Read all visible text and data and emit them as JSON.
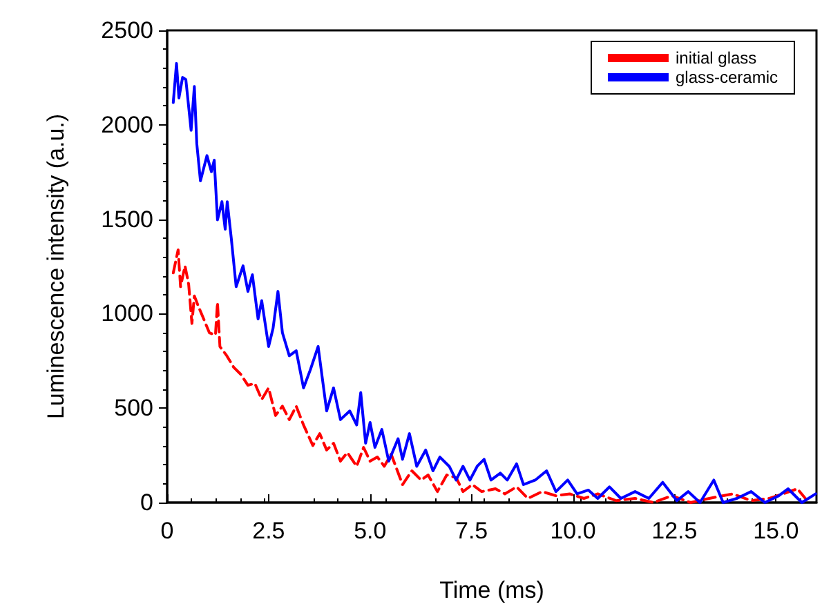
{
  "chart_data": {
    "type": "line",
    "xlabel": "Time (ms)",
    "ylabel": "Luminescence intensity (a.u.)",
    "xlim": [
      0,
      16
    ],
    "ylim": [
      0,
      2500
    ],
    "xticks": [
      0,
      2.5,
      {
        "value": 5,
        "label": "5.0"
      },
      7.5,
      {
        "value": 10,
        "label": "10.0"
      },
      12.5,
      {
        "value": 15,
        "label": "15.0"
      }
    ],
    "yticks": [
      0,
      500,
      1000,
      1500,
      2000,
      2500
    ],
    "grid": false,
    "legend": "top right",
    "marker": "none",
    "series": [
      {
        "name": "initial glass",
        "color": "#ff0000",
        "line_style": "dashed",
        "x": [
          0.15,
          0.27,
          0.33,
          0.44,
          0.53,
          0.61,
          0.67,
          0.78,
          0.9,
          1.04,
          1.19,
          1.24,
          1.3,
          1.47,
          1.64,
          1.81,
          1.99,
          2.16,
          2.33,
          2.5,
          2.67,
          2.84,
          3.01,
          3.18,
          3.36,
          3.59,
          3.76,
          3.93,
          4.1,
          4.27,
          4.44,
          4.67,
          4.84,
          5.0,
          5.18,
          5.35,
          5.52,
          5.8,
          6.03,
          6.26,
          6.43,
          6.66,
          6.89,
          7.12,
          7.29,
          7.52,
          7.75,
          8.09,
          8.32,
          8.61,
          8.89,
          9.24,
          9.58,
          9.92,
          10.27,
          10.61,
          11.07,
          11.53,
          11.98,
          12.44,
          12.9,
          13.36,
          13.93,
          14.39,
          14.84,
          15.18,
          15.53,
          15.81
        ],
        "values": [
          1216,
          1338,
          1143,
          1253,
          1155,
          948,
          1094,
          1033,
          972,
          899,
          887,
          1060,
          826,
          777,
          716,
          680,
          621,
          631,
          546,
          607,
          461,
          510,
          439,
          510,
          411,
          302,
          365,
          278,
          314,
          219,
          265,
          192,
          292,
          219,
          241,
          192,
          256,
          95,
          168,
          119,
          146,
          58,
          146,
          132,
          58,
          95,
          58,
          73,
          46,
          83,
          22,
          58,
          36,
          46,
          22,
          46,
          10,
          22,
          0,
          36,
          0,
          22,
          46,
          10,
          22,
          46,
          73,
          0
        ]
      },
      {
        "name": "glass-ceramic",
        "color": "#0000ff",
        "line_style": "solid",
        "x": [
          0.15,
          0.23,
          0.29,
          0.38,
          0.46,
          0.59,
          0.67,
          0.73,
          0.82,
          0.98,
          1.09,
          1.16,
          1.24,
          1.35,
          1.43,
          1.48,
          1.58,
          1.7,
          1.87,
          1.99,
          2.1,
          2.24,
          2.33,
          2.5,
          2.61,
          2.73,
          2.84,
          3.01,
          3.18,
          3.36,
          3.53,
          3.72,
          3.93,
          4.1,
          4.27,
          4.5,
          4.67,
          4.77,
          4.89,
          5.0,
          5.12,
          5.29,
          5.46,
          5.69,
          5.8,
          5.97,
          6.15,
          6.37,
          6.55,
          6.72,
          6.95,
          7.12,
          7.29,
          7.46,
          7.64,
          7.81,
          7.98,
          8.21,
          8.38,
          8.61,
          8.78,
          9.07,
          9.35,
          9.58,
          9.87,
          10.1,
          10.38,
          10.61,
          10.9,
          11.18,
          11.53,
          11.87,
          12.21,
          12.56,
          12.84,
          13.13,
          13.47,
          13.7,
          14.04,
          14.39,
          14.73,
          15.07,
          15.3,
          15.64,
          15.98
        ],
        "values": [
          2118,
          2325,
          2142,
          2251,
          2240,
          1971,
          2203,
          1900,
          1703,
          1837,
          1752,
          1813,
          1497,
          1593,
          1447,
          1593,
          1399,
          1143,
          1253,
          1118,
          1206,
          972,
          1069,
          826,
          923,
          1118,
          899,
          777,
          804,
          607,
          704,
          826,
          485,
          607,
          439,
          485,
          411,
          582,
          314,
          424,
          292,
          387,
          219,
          338,
          229,
          365,
          192,
          278,
          168,
          241,
          192,
          119,
          192,
          119,
          192,
          229,
          119,
          156,
          119,
          205,
          95,
          119,
          168,
          58,
          119,
          46,
          66,
          22,
          83,
          22,
          58,
          22,
          107,
          10,
          58,
          0,
          119,
          0,
          22,
          58,
          0,
          36,
          73,
          0,
          46
        ]
      }
    ]
  }
}
